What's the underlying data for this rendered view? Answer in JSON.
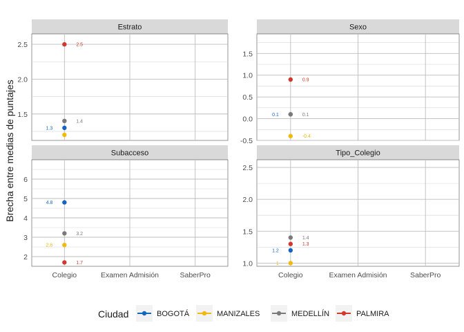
{
  "chart_data": {
    "type": "scatter",
    "ylabel": "Brecha entre medias de puntajes",
    "xlabel": "",
    "categories": [
      "Colegio",
      "Examen Admisión",
      "SaberPro"
    ],
    "legend": {
      "title": "Ciudad",
      "position": "bottom",
      "entries": [
        {
          "name": "BOGOTÁ",
          "color": "#1565c0"
        },
        {
          "name": "MANIZALES",
          "color": "#f0b90b"
        },
        {
          "name": "MEDELLÍN",
          "color": "#7a7a7a"
        },
        {
          "name": "PALMIRA",
          "color": "#d1392e"
        }
      ]
    },
    "panels": [
      {
        "title": "Estrato",
        "ylim": [
          1.12,
          2.65
        ],
        "yticks": [
          1.5,
          2.0,
          2.5
        ],
        "ytick_labels": [
          "1.5",
          "2.0",
          "2.5"
        ],
        "points": [
          {
            "city": "BOGOTÁ",
            "x": "Colegio",
            "y": 1.3,
            "label": "1.3",
            "label_side": "left"
          },
          {
            "city": "MANIZALES",
            "x": "Colegio",
            "y": 1.2,
            "label": "",
            "label_side": "left"
          },
          {
            "city": "MEDELLÍN",
            "x": "Colegio",
            "y": 1.4,
            "label": "1.4",
            "label_side": "right"
          },
          {
            "city": "PALMIRA",
            "x": "Colegio",
            "y": 2.5,
            "label": "2.5",
            "label_side": "right"
          }
        ]
      },
      {
        "title": "Sexo",
        "ylim": [
          -0.5,
          1.95
        ],
        "yticks": [
          -0.5,
          0.0,
          0.5,
          1.0,
          1.5
        ],
        "ytick_labels": [
          "-0.5",
          "0.0",
          "0.5",
          "1.0",
          "1.5"
        ],
        "points": [
          {
            "city": "BOGOTÁ",
            "x": "Colegio",
            "y": 0.1,
            "label": "0.1",
            "label_side": "left"
          },
          {
            "city": "MANIZALES",
            "x": "Colegio",
            "y": -0.4,
            "label": "-0.4",
            "label_side": "right"
          },
          {
            "city": "MEDELLÍN",
            "x": "Colegio",
            "y": 0.1,
            "label": "0.1",
            "label_side": "right"
          },
          {
            "city": "PALMIRA",
            "x": "Colegio",
            "y": 0.9,
            "label": "0.9",
            "label_side": "right"
          }
        ]
      },
      {
        "title": "Subacceso",
        "ylim": [
          1.5,
          7.0
        ],
        "yticks": [
          2,
          3,
          4,
          5,
          6
        ],
        "ytick_labels": [
          "2",
          "3",
          "4",
          "5",
          "6"
        ],
        "points": [
          {
            "city": "BOGOTÁ",
            "x": "Colegio",
            "y": 4.8,
            "label": "4.8",
            "label_side": "left"
          },
          {
            "city": "MANIZALES",
            "x": "Colegio",
            "y": 2.6,
            "label": "2.6",
            "label_side": "left"
          },
          {
            "city": "MEDELLÍN",
            "x": "Colegio",
            "y": 3.2,
            "label": "3.2",
            "label_side": "right"
          },
          {
            "city": "PALMIRA",
            "x": "Colegio",
            "y": 1.7,
            "label": "1.7",
            "label_side": "right"
          }
        ]
      },
      {
        "title": "Tipo_Colegio",
        "ylim": [
          0.95,
          2.62
        ],
        "yticks": [
          1.0,
          1.5,
          2.0,
          2.5
        ],
        "ytick_labels": [
          "1.0",
          "1.5",
          "2.0",
          "2.5"
        ],
        "points": [
          {
            "city": "BOGOTÁ",
            "x": "Colegio",
            "y": 1.2,
            "label": "1.2",
            "label_side": "left"
          },
          {
            "city": "MANIZALES",
            "x": "Colegio",
            "y": 1.0,
            "label": "1",
            "label_side": "left"
          },
          {
            "city": "MEDELLÍN",
            "x": "Colegio",
            "y": 1.4,
            "label": "1.4",
            "label_side": "right"
          },
          {
            "city": "PALMIRA",
            "x": "Colegio",
            "y": 1.3,
            "label": "1.3",
            "label_side": "right"
          }
        ]
      }
    ]
  }
}
